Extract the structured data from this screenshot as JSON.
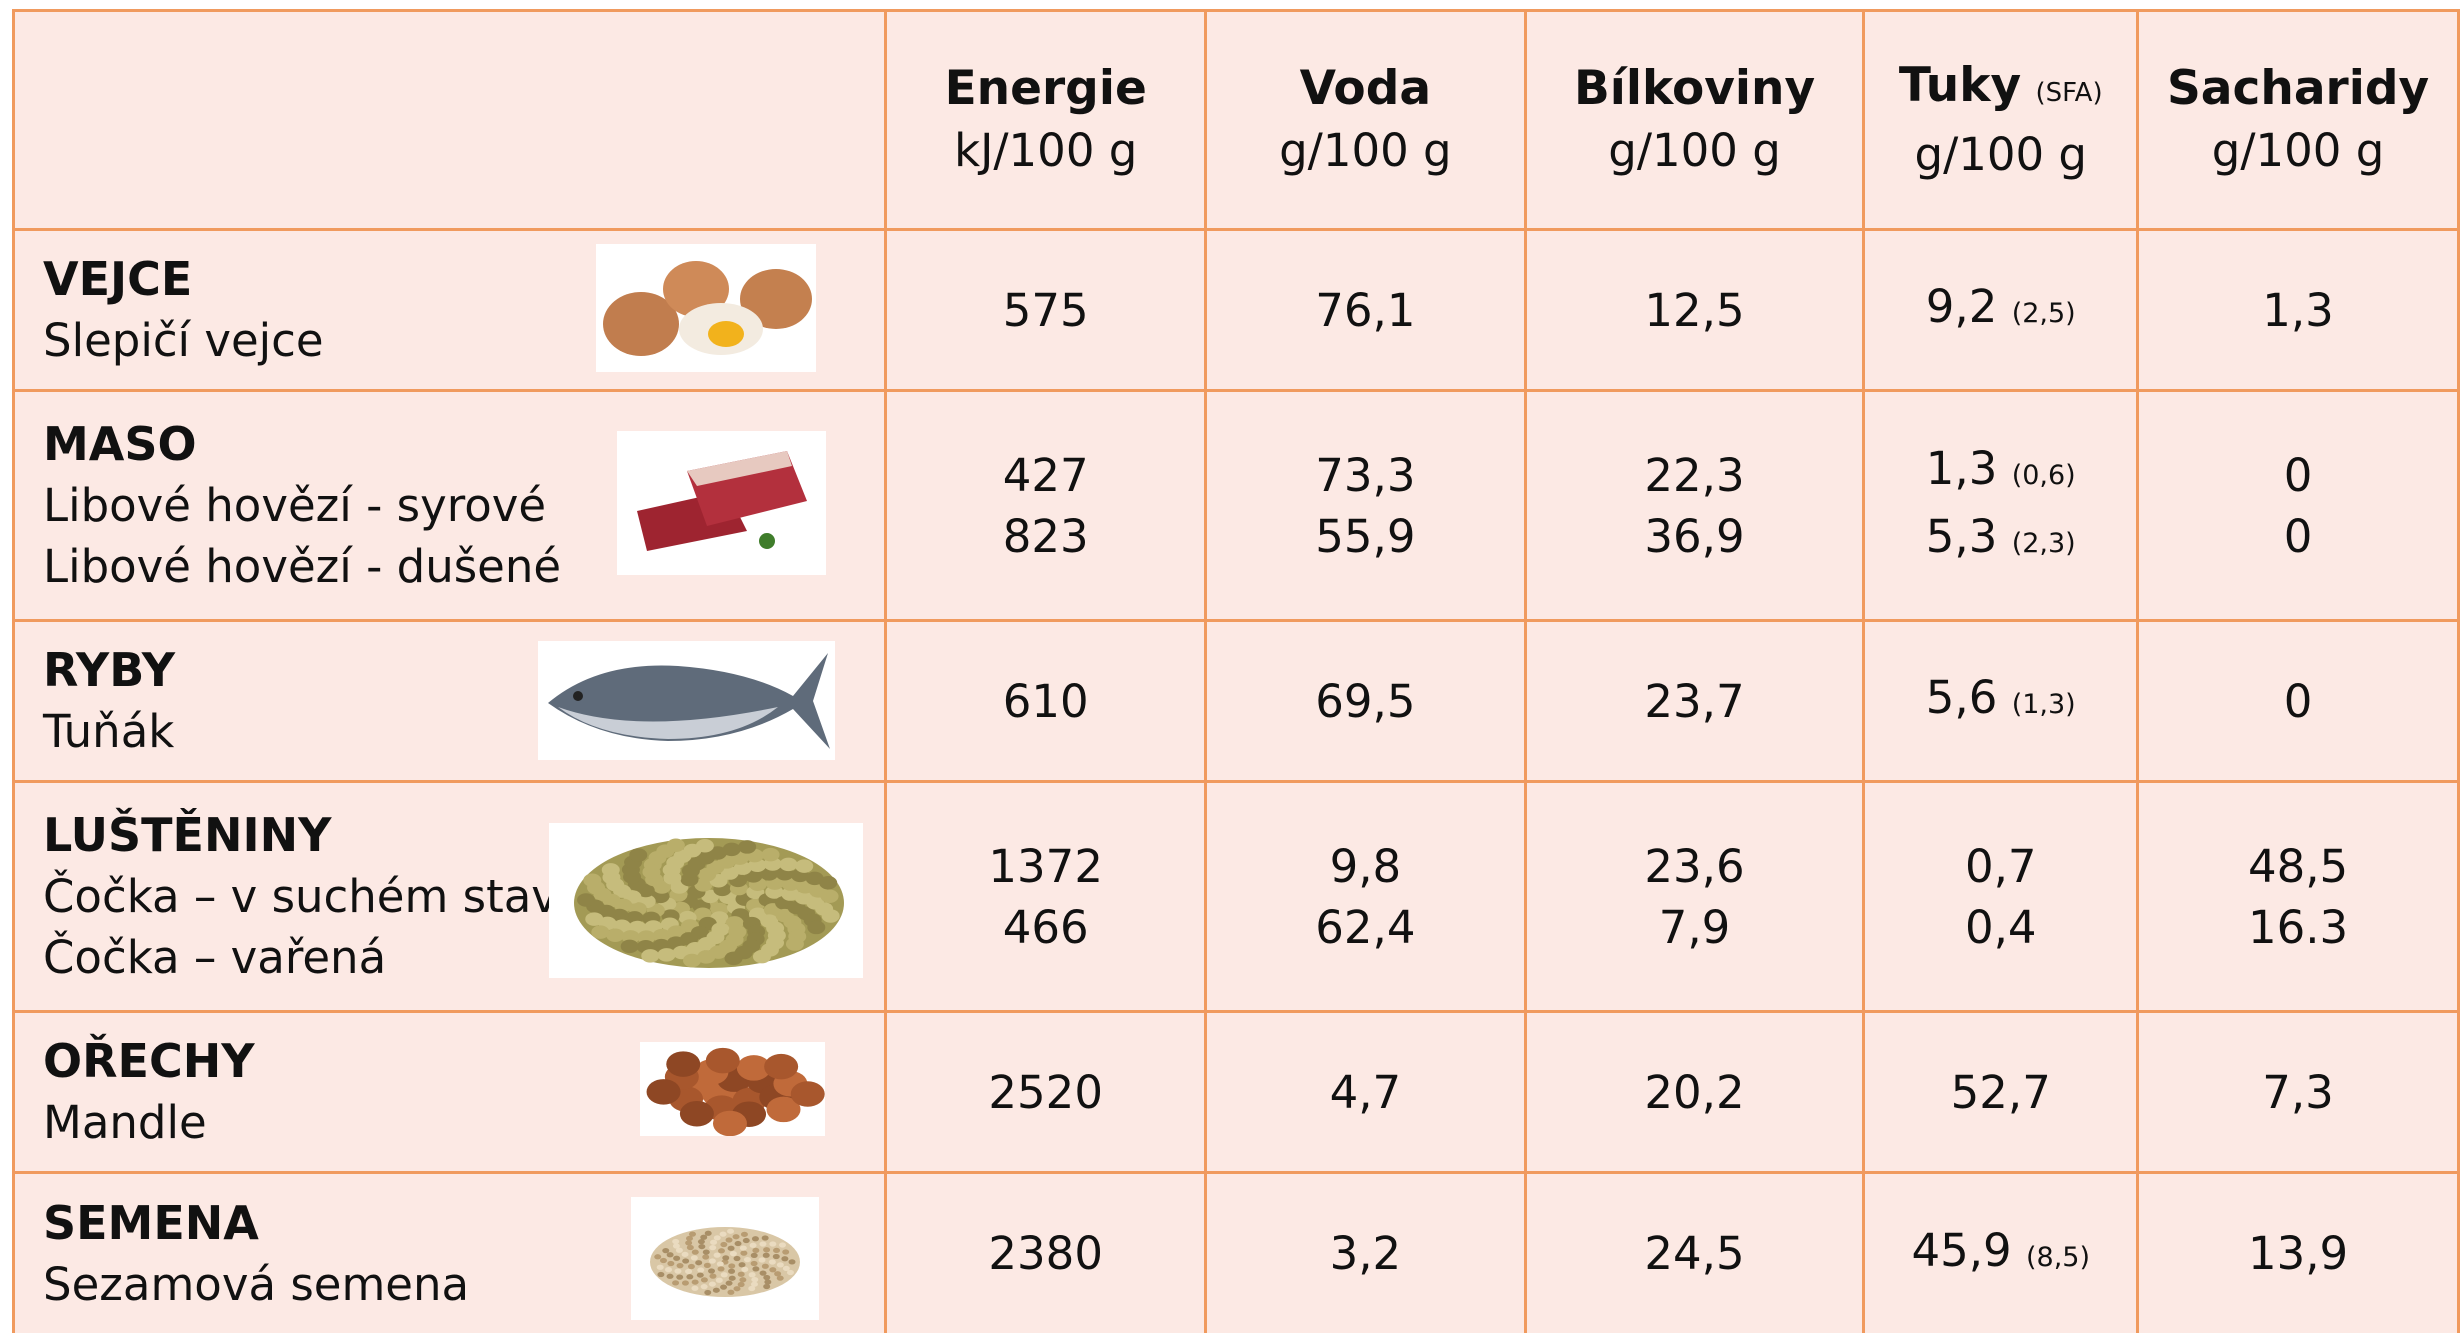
{
  "header": {
    "columns": [
      {
        "name": "Energie",
        "unit": "kJ/100 g"
      },
      {
        "name": "Voda",
        "unit": "g/100 g"
      },
      {
        "name": "Bílkoviny",
        "unit": "g/100 g"
      },
      {
        "name": "Tuky",
        "note": "(SFA)",
        "unit": "g/100 g"
      },
      {
        "name": "Sacharidy",
        "unit": "g/100 g"
      }
    ]
  },
  "rows": [
    {
      "category": "VEJCE",
      "items": [
        {
          "name": "Slepičí vejce",
          "values": [
            "575",
            "76,1",
            "12,5",
            "9,2",
            "1,3"
          ],
          "sfa": "(2,5)"
        }
      ]
    },
    {
      "category": "MASO",
      "items": [
        {
          "name": "Libové hovězí - syrové",
          "values": [
            "427",
            "73,3",
            "22,3",
            "1,3",
            "0"
          ],
          "sfa": "(0,6)"
        },
        {
          "name": "Libové hovězí - dušené",
          "values": [
            "823",
            "55,9",
            "36,9",
            "5,3",
            "0"
          ],
          "sfa": "(2,3)"
        }
      ]
    },
    {
      "category": "RYBY",
      "items": [
        {
          "name": "Tuňák",
          "values": [
            "610",
            "69,5",
            "23,7",
            "5,6",
            "0"
          ],
          "sfa": "(1,3)"
        }
      ]
    },
    {
      "category": "LUŠTĚNINY",
      "items": [
        {
          "name": "Čočka – v suchém stavu",
          "values": [
            "1372",
            "9,8",
            "23,6",
            "0,7",
            "48,5"
          ]
        },
        {
          "name": "Čočka – vařená",
          "values": [
            "466",
            "62,4",
            "7,9",
            "0,4",
            "16.3"
          ]
        }
      ]
    },
    {
      "category": "OŘECHY",
      "items": [
        {
          "name": "Mandle",
          "values": [
            "2520",
            "4,7",
            "20,2",
            "52,7",
            "7,3"
          ]
        }
      ]
    },
    {
      "category": "SEMENA",
      "items": [
        {
          "name": "Sezamová semena",
          "values": [
            "2380",
            "3,2",
            "24,5",
            "45,9",
            "13,9"
          ],
          "sfa": "(8,5)"
        }
      ]
    }
  ]
}
